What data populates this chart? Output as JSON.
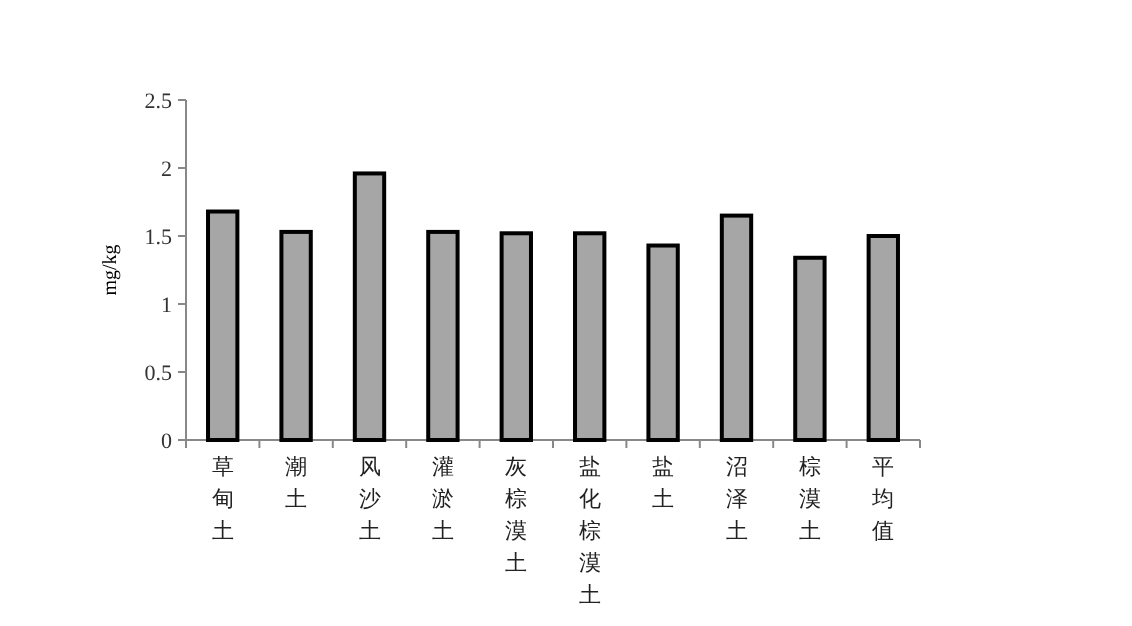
{
  "chart_data": {
    "type": "bar",
    "ylabel": "mg/kg",
    "categories": [
      "草甸土",
      "潮土",
      "风沙土",
      "灌淤土",
      "灰棕漠土",
      "盐化棕漠土",
      "盐土",
      "沼泽土",
      "棕漠土",
      "平均值"
    ],
    "values": [
      1.68,
      1.53,
      1.96,
      1.53,
      1.52,
      1.52,
      1.43,
      1.65,
      1.34,
      1.5
    ],
    "color": "#a6a6a6",
    "ylim": [
      0,
      2.5
    ],
    "yticks": [
      0,
      0.5,
      1,
      1.5,
      2,
      2.5
    ]
  }
}
